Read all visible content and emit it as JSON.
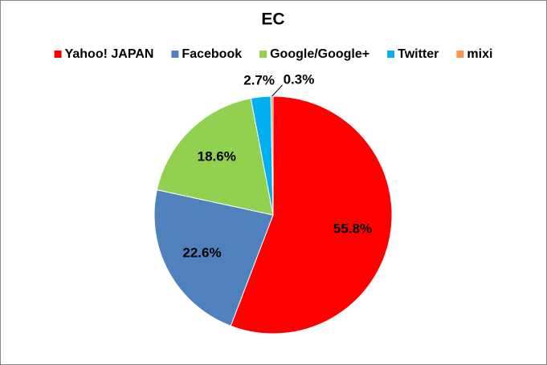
{
  "chart_data": {
    "type": "pie",
    "title": "EC",
    "categories": [
      "Yahoo! JAPAN",
      "Facebook",
      "Google/Google+",
      "Twitter",
      "mixi"
    ],
    "values": [
      55.8,
      22.6,
      18.6,
      2.7,
      0.3
    ],
    "value_labels": [
      "55.8%",
      "22.6%",
      "18.6%",
      "2.7%",
      "0.3%"
    ],
    "colors": [
      "#ff0000",
      "#4f81bd",
      "#92d050",
      "#00b0f0",
      "#f79646"
    ],
    "legend": "top"
  }
}
